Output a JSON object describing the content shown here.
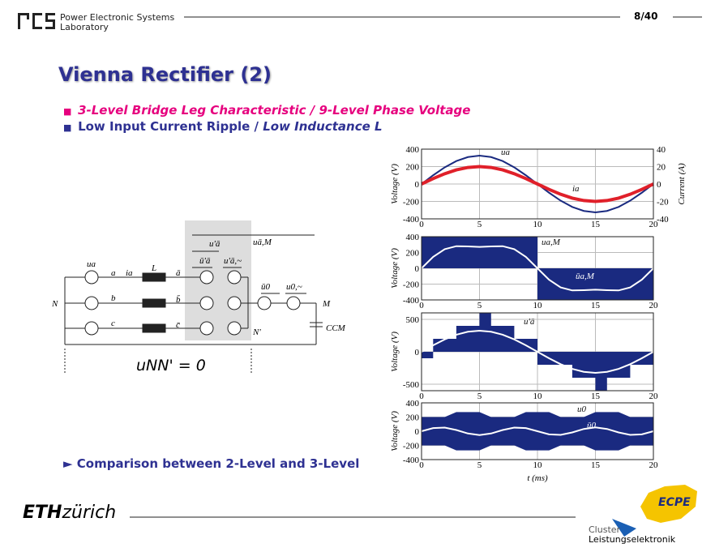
{
  "header": {
    "lab_line1": "Power Electronic Systems",
    "lab_line2": "Laboratory",
    "page": "8/40"
  },
  "title": "Vienna Rectifier (2)",
  "bullets": [
    {
      "text": "3-Level Bridge Leg Characteristic / 9-Level Phase Voltage"
    },
    {
      "text": "Low Input Current Ripple / ",
      "emphasis": "Low Inductance L"
    }
  ],
  "link": "Comparison between 2-Level and 3-Level",
  "circuit": {
    "labels": [
      "ua",
      "a",
      "ia",
      "L",
      "ā",
      "N",
      "b",
      "b̄",
      "c",
      "c̄",
      "u'ā",
      "uā,M",
      "ū'ā",
      "u'ā,~",
      "ū0",
      "u0,~",
      "M",
      "N'",
      "CCM"
    ],
    "equation": "uNN' = 0"
  },
  "footer": {
    "eth": "ETH",
    "zurich": "zürich",
    "ecpe": "ECPE",
    "cluster": "Cluster",
    "cluster2": "Leistungselektronik"
  },
  "chart_data": [
    {
      "type": "line",
      "ylabel": "Voltage (V)",
      "y2label": "Current (A)",
      "x": [
        0,
        1,
        2,
        3,
        4,
        5,
        6,
        7,
        8,
        9,
        10,
        11,
        12,
        13,
        14,
        15,
        16,
        17,
        18,
        19,
        20
      ],
      "xlim": [
        0,
        20
      ],
      "xticks": [
        0,
        5,
        10,
        15,
        20
      ],
      "ylim": [
        -400,
        400
      ],
      "yticks": [
        -400,
        -200,
        0,
        200,
        400
      ],
      "y2lim": [
        -40,
        40
      ],
      "y2ticks": [
        -40,
        -20,
        0,
        20,
        40
      ],
      "grid": true,
      "series": [
        {
          "name": "ua",
          "color": "#1a2a80",
          "kind": "line",
          "values": [
            0,
            100,
            191,
            263,
            309,
            325,
            309,
            263,
            191,
            100,
            0,
            -100,
            -191,
            -263,
            -309,
            -325,
            -309,
            -263,
            -191,
            -100,
            0
          ]
        },
        {
          "name": "ia",
          "color": "#e0202a",
          "kind": "line",
          "axis": "y2",
          "values": [
            0,
            6.2,
            11.8,
            16.2,
            19,
            20,
            19,
            16.2,
            11.8,
            6.2,
            0,
            -6.2,
            -11.8,
            -16.2,
            -19,
            -20,
            -19,
            -16.2,
            -11.8,
            -6.2,
            0
          ]
        }
      ]
    },
    {
      "type": "line",
      "ylabel": "Voltage (V)",
      "x": [
        0,
        1,
        2,
        3,
        4,
        5,
        6,
        7,
        8,
        9,
        10,
        11,
        12,
        13,
        14,
        15,
        16,
        17,
        18,
        19,
        20
      ],
      "xlim": [
        0,
        20
      ],
      "xticks": [
        0,
        5,
        10,
        15,
        20
      ],
      "ylim": [
        -400,
        400
      ],
      "yticks": [
        -400,
        -200,
        0,
        200,
        400
      ],
      "grid": true,
      "series": [
        {
          "name": "ua,M",
          "color": "#1a2a80",
          "kind": "area",
          "values": [
            400,
            400,
            400,
            400,
            400,
            400,
            400,
            400,
            400,
            400,
            -400,
            -400,
            -400,
            -400,
            -400,
            -400,
            -400,
            -400,
            -400,
            -400,
            -400
          ]
        },
        {
          "name": "ūa,M",
          "color": "#ffffff",
          "kind": "line",
          "values": [
            0,
            144,
            242,
            280,
            277,
            271,
            277,
            280,
            242,
            144,
            0,
            -144,
            -242,
            -280,
            -277,
            -271,
            -277,
            -280,
            -242,
            -144,
            0
          ]
        }
      ]
    },
    {
      "type": "line",
      "ylabel": "Voltage (V)",
      "x": [
        0,
        1,
        2,
        3,
        4,
        5,
        6,
        7,
        8,
        9,
        10,
        11,
        12,
        13,
        14,
        15,
        16,
        17,
        18,
        19,
        20
      ],
      "xlim": [
        0,
        20
      ],
      "xticks": [
        0,
        5,
        10,
        15,
        20
      ],
      "ylim": [
        -600,
        600
      ],
      "yticks": [
        -500,
        0,
        500
      ],
      "grid": true,
      "series": [
        {
          "name": "u'ā",
          "color": "#1a2a80",
          "kind": "area",
          "values": [
            -100,
            200,
            200,
            400,
            400,
            600,
            400,
            400,
            200,
            200,
            -200,
            -200,
            -200,
            -400,
            -400,
            -600,
            -400,
            -400,
            -200,
            -200,
            100
          ]
        },
        {
          "name": "ū'ā",
          "color": "#ffffff",
          "kind": "line",
          "values": [
            0,
            100,
            191,
            263,
            309,
            325,
            309,
            263,
            191,
            100,
            0,
            -100,
            -191,
            -263,
            -309,
            -325,
            -309,
            -263,
            -191,
            -100,
            0
          ]
        }
      ]
    },
    {
      "type": "line",
      "ylabel": "Voltage (V)",
      "xlabel": "t (ms)",
      "x": [
        0,
        1,
        2,
        3,
        4,
        5,
        6,
        7,
        8,
        9,
        10,
        11,
        12,
        13,
        14,
        15,
        16,
        17,
        18,
        19,
        20
      ],
      "xlim": [
        0,
        20
      ],
      "xticks": [
        0,
        5,
        10,
        15,
        20
      ],
      "ylim": [
        -400,
        400
      ],
      "yticks": [
        -400,
        -200,
        0,
        200,
        400
      ],
      "grid": true,
      "series": [
        {
          "name": "u0",
          "color": "#1a2a80",
          "kind": "band",
          "values": [
            200,
            200,
            200,
            270,
            270,
            270,
            200,
            200,
            200,
            270,
            270,
            270,
            200,
            200,
            200,
            270,
            270,
            270,
            200,
            200,
            200
          ]
        },
        {
          "name": "ū0",
          "color": "#ffffff",
          "kind": "line",
          "values": [
            0,
            44,
            51,
            17,
            -32,
            -54,
            -32,
            17,
            51,
            44,
            0,
            -44,
            -51,
            -17,
            32,
            54,
            32,
            -17,
            -51,
            -44,
            0
          ]
        }
      ]
    }
  ]
}
